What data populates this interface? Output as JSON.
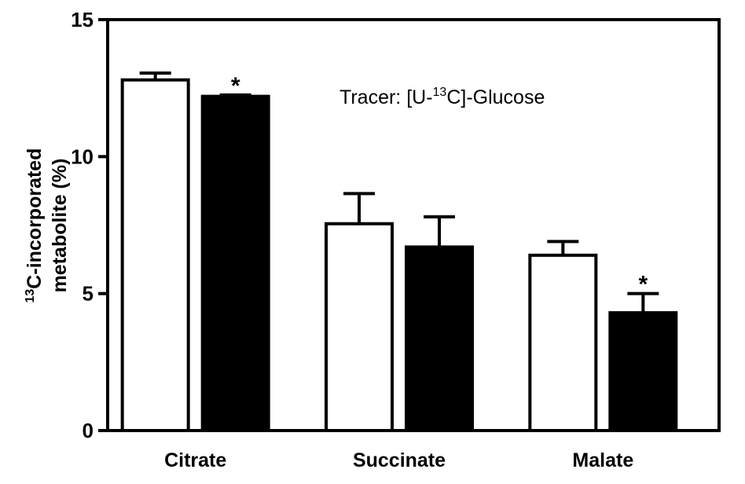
{
  "chart_data": {
    "type": "bar",
    "categories": [
      "Citrate",
      "Succinate",
      "Malate"
    ],
    "series": [
      {
        "fill": "#ffffff",
        "values": [
          12.8,
          7.55,
          6.4
        ],
        "errors": [
          0.25,
          1.1,
          0.5
        ],
        "significance": [
          "",
          "",
          ""
        ]
      },
      {
        "fill": "#000000",
        "values": [
          12.2,
          6.7,
          4.3
        ],
        "errors": [
          0.05,
          1.1,
          0.7
        ],
        "significance": [
          "*",
          "",
          "*"
        ]
      }
    ],
    "ylabel_line1_super": "13",
    "ylabel_line1_rest": "C-incorporated",
    "ylabel_line2": "metabolite (%)",
    "ylim": [
      0,
      15
    ],
    "yticks": [
      "0",
      "5",
      "10",
      "15"
    ],
    "annotation": {
      "prefix": "Tracer: [U-",
      "super": "13",
      "suffix": "C]-Glucose"
    },
    "grid": false,
    "legend": "none"
  }
}
